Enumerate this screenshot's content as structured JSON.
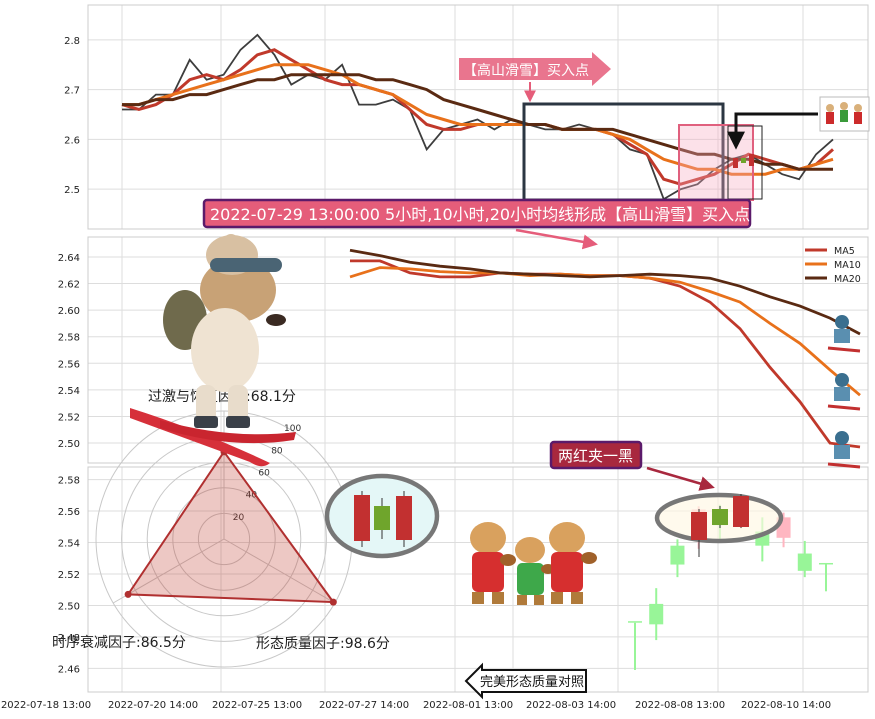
{
  "chart_data": [
    {
      "type": "line",
      "panel": "top",
      "x_ticks": [
        "2022-07-18 13:00",
        "2022-07-20 14:00",
        "2022-07-25 13:00",
        "2022-07-27 14:00",
        "2022-08-01 13:00",
        "2022-08-03 14:00",
        "2022-08-08 13:00",
        "2022-08-10 14:00"
      ],
      "ylim": [
        2.42,
        2.87
      ],
      "y_ticks": [
        2.5,
        2.6,
        2.7,
        2.8
      ],
      "grid": true,
      "series": [
        {
          "key": "price",
          "color": "#3d3d3d",
          "values": [
            2.66,
            2.66,
            2.69,
            2.69,
            2.76,
            2.72,
            2.73,
            2.78,
            2.81,
            2.77,
            2.71,
            2.73,
            2.72,
            2.75,
            2.67,
            2.67,
            2.68,
            2.66,
            2.58,
            2.62,
            2.63,
            2.64,
            2.62,
            2.64,
            2.63,
            2.62,
            2.62,
            2.63,
            2.62,
            2.61,
            2.58,
            2.57,
            2.48,
            2.5,
            2.51,
            2.54,
            2.56,
            2.57,
            2.55,
            2.53,
            2.52,
            2.57,
            2.6
          ]
        },
        {
          "key": "ma5",
          "color": "#c0392b",
          "values": [
            2.67,
            2.66,
            2.67,
            2.69,
            2.72,
            2.73,
            2.72,
            2.74,
            2.77,
            2.78,
            2.76,
            2.74,
            2.72,
            2.71,
            2.71,
            2.7,
            2.69,
            2.66,
            2.63,
            2.62,
            2.62,
            2.63,
            2.63,
            2.63,
            2.63,
            2.63,
            2.62,
            2.62,
            2.62,
            2.61,
            2.59,
            2.57,
            2.52,
            2.51,
            2.52,
            2.53,
            2.55,
            2.57,
            2.56,
            2.55,
            2.54,
            2.55,
            2.58
          ]
        },
        {
          "key": "ma10",
          "color": "#e8711b",
          "values": [
            2.67,
            2.67,
            2.68,
            2.69,
            2.7,
            2.71,
            2.72,
            2.73,
            2.74,
            2.75,
            2.75,
            2.75,
            2.74,
            2.73,
            2.71,
            2.7,
            2.69,
            2.67,
            2.65,
            2.64,
            2.63,
            2.63,
            2.63,
            2.63,
            2.63,
            2.63,
            2.62,
            2.62,
            2.62,
            2.61,
            2.6,
            2.58,
            2.56,
            2.55,
            2.54,
            2.54,
            2.53,
            2.53,
            2.53,
            2.54,
            2.54,
            2.55,
            2.56
          ]
        },
        {
          "key": "ma20",
          "color": "#5a2a12",
          "values": [
            2.67,
            2.67,
            2.68,
            2.68,
            2.69,
            2.69,
            2.7,
            2.71,
            2.72,
            2.72,
            2.73,
            2.73,
            2.73,
            2.73,
            2.73,
            2.72,
            2.72,
            2.71,
            2.7,
            2.68,
            2.67,
            2.66,
            2.65,
            2.64,
            2.63,
            2.63,
            2.62,
            2.62,
            2.62,
            2.62,
            2.61,
            2.6,
            2.59,
            2.58,
            2.57,
            2.57,
            2.56,
            2.56,
            2.55,
            2.55,
            2.54,
            2.54,
            2.54
          ]
        }
      ]
    },
    {
      "type": "line",
      "panel": "middle",
      "ylim": [
        2.485,
        2.655
      ],
      "y_ticks": [
        2.5,
        2.52,
        2.54,
        2.56,
        2.58,
        2.6,
        2.62,
        2.64
      ],
      "grid": true,
      "legend": {
        "position": "top-right",
        "entries": [
          "MA5",
          "MA10",
          "MA20"
        ]
      },
      "series": [
        {
          "name": "MA5",
          "color": "#c0392b",
          "values": [
            2.637,
            2.637,
            2.628,
            2.625,
            2.625,
            2.628,
            2.627,
            2.627,
            2.626,
            2.626,
            2.624,
            2.618,
            2.606,
            2.586,
            2.557,
            2.531,
            2.5,
            2.497
          ]
        },
        {
          "name": "MA10",
          "color": "#e8711b",
          "values": [
            2.625,
            2.632,
            2.631,
            2.629,
            2.628,
            2.628,
            2.626,
            2.627,
            2.626,
            2.626,
            2.624,
            2.621,
            2.614,
            2.606,
            2.59,
            2.575,
            2.555,
            2.536
          ]
        },
        {
          "name": "MA20",
          "color": "#5a2a12",
          "values": [
            2.645,
            2.641,
            2.636,
            2.633,
            2.631,
            2.628,
            2.627,
            2.626,
            2.625,
            2.626,
            2.627,
            2.626,
            2.624,
            2.618,
            2.61,
            2.603,
            2.594,
            2.582
          ]
        }
      ]
    },
    {
      "type": "candlestick",
      "panel": "bottom",
      "ylim": [
        2.445,
        2.588
      ],
      "y_ticks": [
        2.46,
        2.48,
        2.5,
        2.52,
        2.54,
        2.56,
        2.58
      ],
      "grid": true,
      "candles": [
        {
          "open": 2.49,
          "close": 2.49,
          "high": 2.489,
          "low": 2.459,
          "dir": "down"
        },
        {
          "open": 2.501,
          "close": 2.488,
          "high": 2.511,
          "low": 2.478,
          "dir": "down"
        },
        {
          "open": 2.538,
          "close": 2.526,
          "high": 2.542,
          "low": 2.518,
          "dir": "down"
        },
        {
          "open": 2.55,
          "close": 2.561,
          "high": 2.563,
          "low": 2.536,
          "dir": "up"
        },
        {
          "open": 2.561,
          "close": 2.551,
          "high": 2.564,
          "low": 2.541,
          "dir": "down"
        },
        {
          "open": 2.551,
          "close": 2.566,
          "high": 2.568,
          "low": 2.549,
          "dir": "up"
        },
        {
          "open": 2.547,
          "close": 2.538,
          "high": 2.556,
          "low": 2.528,
          "dir": "down"
        },
        {
          "open": 2.543,
          "close": 2.556,
          "high": 2.559,
          "low": 2.537,
          "dir": "up"
        },
        {
          "open": 2.533,
          "close": 2.522,
          "high": 2.541,
          "low": 2.518,
          "dir": "down"
        },
        {
          "open": 2.527,
          "close": 2.527,
          "high": 2.527,
          "low": 2.509,
          "dir": "down"
        }
      ]
    },
    {
      "type": "radar",
      "panel": "bottom-left",
      "rlim": [
        0,
        100
      ],
      "r_ticks": [
        20,
        40,
        60,
        80,
        100
      ],
      "axes": [
        {
          "label": "过激与恢复因子:68.1分",
          "value": 68.1
        },
        {
          "label": "形态质量因子:98.6分",
          "value": 98.6
        },
        {
          "label": "时序衰减因子:86.5分",
          "value": 86.5
        }
      ]
    }
  ],
  "annotations": {
    "buy_point_top": "【高山滑雪】买入点",
    "signal_banner": "2022-07-29 13:00:00 5小时,10小时,20小时均线形成【高山滑雪】买入点",
    "pattern_label": "两红夹一黑",
    "compare_button": "完美形态质量对照"
  },
  "colors": {
    "up": "#ffb6c1",
    "down": "#98f598",
    "pattern_red": "#c23030",
    "pattern_green": "#6fa52c",
    "banner_fill": "#e55d7a",
    "banner_border": "#5b1a6a",
    "pattern_label_fill": "#a8283e"
  },
  "icons": [
    "skiing-dog-illustration",
    "dogs-eating-burgers-illustration",
    "skiing-dog-icon",
    "dog-trio-icon"
  ]
}
